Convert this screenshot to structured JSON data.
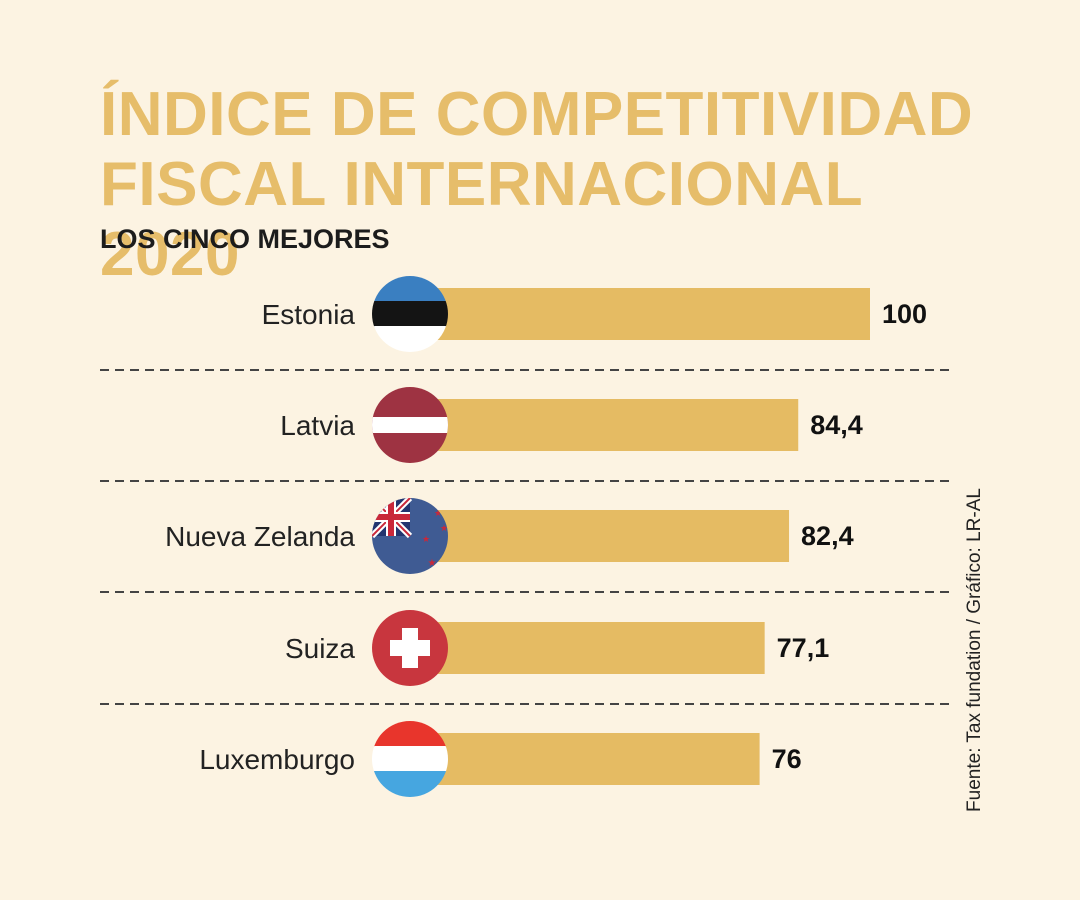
{
  "title_line1": "ÍNDICE DE COMPETITIVIDAD",
  "title_line2": "FISCAL INTERNACIONAL 2020",
  "subtitle": "LOS CINCO MEJORES",
  "source": "Fuente: Tax fundation / Gráfico: LR-AL",
  "colors": {
    "background": "#fcf3e2",
    "title": "#e6bd6a",
    "bar": "#e5bb63",
    "divider": "#444444"
  },
  "chart_data": {
    "type": "bar",
    "orientation": "horizontal",
    "title": "ÍNDICE DE COMPETITIVIDAD FISCAL INTERNACIONAL 2020",
    "subtitle": "LOS CINCO MEJORES",
    "categories": [
      "Estonia",
      "Latvia",
      "Nueva Zelanda",
      "Suiza",
      "Luxemburgo"
    ],
    "values": [
      100,
      84.4,
      82.4,
      77.1,
      76
    ],
    "value_labels": [
      "100",
      "84,4",
      "82,4",
      "77,1",
      "76"
    ],
    "flags": [
      "estonia-flag",
      "latvia-flag",
      "new-zealand-flag",
      "switzerland-flag",
      "luxembourg-flag"
    ],
    "grid": false,
    "legend": "none"
  }
}
